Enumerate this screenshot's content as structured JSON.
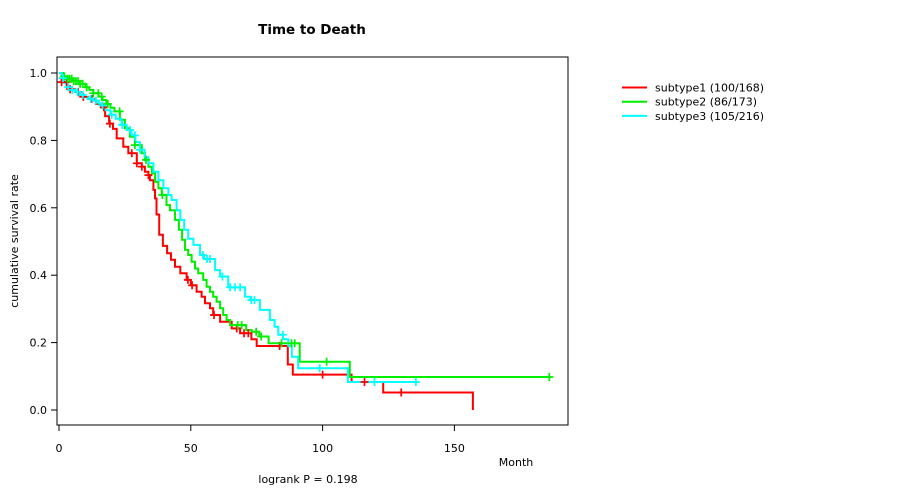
{
  "chart_data": {
    "type": "line",
    "subtype": "kaplan-meier-step-survival",
    "title": "Time to Death",
    "xlabel": "Month",
    "ylabel": "cumulative survival rate",
    "annotation": "logrank P = 0.198",
    "xlim": [
      0,
      193
    ],
    "ylim": [
      0,
      1.0
    ],
    "x_ticks": [
      0,
      50,
      100,
      150
    ],
    "y_ticks": [
      0.0,
      0.2,
      0.4,
      0.6,
      0.8,
      1.0
    ],
    "x_tick_labels": [
      "0",
      "50",
      "100",
      "150"
    ],
    "y_tick_labels": [
      "0.0",
      "0.2",
      "0.4",
      "0.6",
      "0.8",
      "1.0"
    ],
    "grid": false,
    "legend_position": "right-outside",
    "series": [
      {
        "name": "subtype1 (100/168)",
        "id": "subtype1",
        "color": "#ff0000",
        "events": 100,
        "n": 168,
        "end_month": 157,
        "steps": [
          [
            0,
            1.0
          ],
          [
            1,
            0.973
          ],
          [
            3,
            0.958
          ],
          [
            4.2,
            0.952
          ],
          [
            6,
            0.944
          ],
          [
            7.5,
            0.934
          ],
          [
            9,
            0.929
          ],
          [
            11,
            0.923
          ],
          [
            12.5,
            0.918
          ],
          [
            14,
            0.908
          ],
          [
            16,
            0.898
          ],
          [
            17.5,
            0.872
          ],
          [
            19,
            0.85
          ],
          [
            20.5,
            0.834
          ],
          [
            21.9,
            0.806
          ],
          [
            24.4,
            0.781
          ],
          [
            26.3,
            0.762
          ],
          [
            29.5,
            0.732
          ],
          [
            31.4,
            0.722
          ],
          [
            32.6,
            0.707
          ],
          [
            33.9,
            0.697
          ],
          [
            34.5,
            0.682
          ],
          [
            35.8,
            0.653
          ],
          [
            36.4,
            0.628
          ],
          [
            37,
            0.58
          ],
          [
            38,
            0.52
          ],
          [
            39.4,
            0.487
          ],
          [
            41,
            0.465
          ],
          [
            42.5,
            0.446
          ],
          [
            44,
            0.425
          ],
          [
            46,
            0.406
          ],
          [
            48.4,
            0.386
          ],
          [
            50,
            0.37
          ],
          [
            52.2,
            0.351
          ],
          [
            54.1,
            0.336
          ],
          [
            55.4,
            0.317
          ],
          [
            57.3,
            0.302
          ],
          [
            58.5,
            0.282
          ],
          [
            61.1,
            0.262
          ],
          [
            65.5,
            0.242
          ],
          [
            68.7,
            0.228
          ],
          [
            73,
            0.21
          ],
          [
            75,
            0.19
          ],
          [
            86.8,
            0.135
          ],
          [
            88.7,
            0.105
          ],
          [
            111,
            0.083
          ],
          [
            123,
            0.052
          ],
          [
            157,
            0.0
          ]
        ],
        "censor_months": [
          1,
          2.9,
          4.2,
          7.3,
          9.2,
          12.4,
          17,
          19.3,
          27.6,
          29.5,
          31.4,
          33.9,
          48.9,
          50.5,
          58.8,
          67.4,
          70.2,
          71.8,
          83.7,
          100,
          115.9,
          129.8
        ]
      },
      {
        "name": "subtype2 (86/173)",
        "id": "subtype2",
        "color": "#00ee00",
        "events": 86,
        "n": 173,
        "end_month": 186.5,
        "steps": [
          [
            0,
            1.0
          ],
          [
            1.5,
            0.99
          ],
          [
            3,
            0.983
          ],
          [
            5,
            0.976
          ],
          [
            8,
            0.968
          ],
          [
            10,
            0.958
          ],
          [
            11.5,
            0.95
          ],
          [
            13,
            0.94
          ],
          [
            15,
            0.93
          ],
          [
            16.5,
            0.92
          ],
          [
            18,
            0.908
          ],
          [
            19.5,
            0.897
          ],
          [
            21,
            0.886
          ],
          [
            23.1,
            0.861
          ],
          [
            25,
            0.836
          ],
          [
            26.9,
            0.811
          ],
          [
            28.8,
            0.786
          ],
          [
            31.4,
            0.762
          ],
          [
            32.6,
            0.742
          ],
          [
            33.9,
            0.722
          ],
          [
            35.2,
            0.702
          ],
          [
            36.4,
            0.677
          ],
          [
            37.7,
            0.658
          ],
          [
            39,
            0.638
          ],
          [
            40.8,
            0.608
          ],
          [
            42.1,
            0.593
          ],
          [
            44,
            0.564
          ],
          [
            45.5,
            0.535
          ],
          [
            46.7,
            0.505
          ],
          [
            47.8,
            0.475
          ],
          [
            49,
            0.46
          ],
          [
            50.3,
            0.44
          ],
          [
            51.6,
            0.42
          ],
          [
            52.8,
            0.406
          ],
          [
            54.7,
            0.386
          ],
          [
            56,
            0.366
          ],
          [
            57.3,
            0.351
          ],
          [
            58.5,
            0.336
          ],
          [
            59.8,
            0.321
          ],
          [
            61.1,
            0.302
          ],
          [
            62.3,
            0.282
          ],
          [
            63.6,
            0.267
          ],
          [
            64.9,
            0.252
          ],
          [
            71,
            0.237
          ],
          [
            73.1,
            0.232
          ],
          [
            76,
            0.218
          ],
          [
            79.5,
            0.198
          ],
          [
            91.3,
            0.143
          ],
          [
            110.3,
            0.098
          ]
        ],
        "censor_months": [
          2,
          3.2,
          4,
          4.8,
          5.6,
          6.4,
          7.2,
          8,
          9,
          10.5,
          13,
          14.9,
          16.2,
          18.5,
          23,
          28.8,
          33,
          39.2,
          67.8,
          69.3,
          74.8,
          76.7,
          84.4,
          88.2,
          89.4,
          101.5,
          186
        ]
      },
      {
        "name": "subtype3 (105/216)",
        "id": "subtype3",
        "color": "#00ffff",
        "events": 105,
        "n": 216,
        "end_month": 135.4,
        "steps": [
          [
            0,
            1.0
          ],
          [
            1,
            0.985
          ],
          [
            2,
            0.97
          ],
          [
            3,
            0.958
          ],
          [
            4.5,
            0.95
          ],
          [
            6,
            0.944
          ],
          [
            8,
            0.935
          ],
          [
            10,
            0.928
          ],
          [
            11.5,
            0.923
          ],
          [
            13.5,
            0.918
          ],
          [
            15,
            0.91
          ],
          [
            16.2,
            0.904
          ],
          [
            17.5,
            0.89
          ],
          [
            19.5,
            0.876
          ],
          [
            21.5,
            0.864
          ],
          [
            23.7,
            0.846
          ],
          [
            25.7,
            0.831
          ],
          [
            27.5,
            0.815
          ],
          [
            29,
            0.795
          ],
          [
            30.7,
            0.772
          ],
          [
            32.5,
            0.75
          ],
          [
            33.9,
            0.732
          ],
          [
            35.8,
            0.707
          ],
          [
            37.7,
            0.682
          ],
          [
            39.6,
            0.658
          ],
          [
            41.5,
            0.638
          ],
          [
            42.7,
            0.623
          ],
          [
            44.6,
            0.593
          ],
          [
            46,
            0.564
          ],
          [
            47.5,
            0.535
          ],
          [
            49,
            0.508
          ],
          [
            51,
            0.49
          ],
          [
            53.5,
            0.46
          ],
          [
            55,
            0.448
          ],
          [
            59.2,
            0.415
          ],
          [
            61.1,
            0.396
          ],
          [
            64.2,
            0.364
          ],
          [
            70.6,
            0.336
          ],
          [
            72.5,
            0.326
          ],
          [
            76.2,
            0.297
          ],
          [
            80,
            0.267
          ],
          [
            81.8,
            0.247
          ],
          [
            83.2,
            0.223
          ],
          [
            85,
            0.21
          ],
          [
            87,
            0.19
          ],
          [
            88.3,
            0.158
          ],
          [
            90.7,
            0.124
          ],
          [
            109.6,
            0.083
          ]
        ],
        "censor_months": [
          1.5,
          3.5,
          5,
          7,
          9,
          12,
          14,
          16.5,
          20,
          24,
          27,
          28.8,
          30.7,
          54.6,
          56.2,
          57.3,
          62,
          64.9,
          66.8,
          68.7,
          73,
          74.2,
          84.9,
          98.9,
          119.7,
          135.4
        ]
      }
    ]
  }
}
